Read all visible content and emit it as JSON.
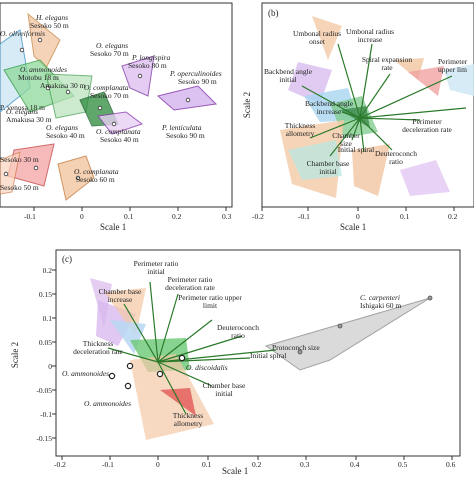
{
  "panel_a": {
    "xlabel": "Scale 1",
    "xticks": [
      "-0.1",
      "0",
      "0.1",
      "0.2",
      "0.3"
    ],
    "labels": [
      [
        "H. elegans",
        "Sesoko 50 m"
      ],
      [
        "O. oliveiformis"
      ],
      [
        "O. ammonoides",
        "Motobu 18 m"
      ],
      [
        "Amakusa 30 m"
      ],
      [
        "O. elegans",
        "Sesoko 70 m"
      ],
      [
        "P. longispira",
        "Sesoko 80 m"
      ],
      [
        "P. operculinoides",
        "Sesoko 90 m"
      ],
      [
        "O. complanata",
        "Sesoko 70 m"
      ],
      [
        "O. elegans",
        "Amakusa 30 m"
      ],
      [
        "O. elegans",
        "Sesoko 40 m"
      ],
      [
        "O. complanata",
        "Sesoko 40 m"
      ],
      [
        "P. venosa 18 m"
      ],
      [
        "O. complanata",
        "Sesoko 60 m"
      ],
      [
        "P. lenticulata",
        "Sesoko 90 m"
      ],
      [
        "Sesoko 30 m"
      ],
      [
        "Sesoko 50 m"
      ]
    ]
  },
  "panel_b": {
    "tag": "(b)",
    "xlabel": "Scale 1",
    "ylabel": "Scale 2",
    "xticks": [
      "-0.2",
      "-0.1",
      "0",
      "0.1",
      "0.2"
    ],
    "yticks": [
      "0.2",
      "0.1",
      "0",
      "-0.1",
      "-0.2"
    ],
    "vectors": [
      "Umbonal radius onset",
      "Umbonal radius increase",
      "Spiral expansion rate",
      "Perimeter upper lim",
      "Backbend angle initial",
      "Backbend angle increase",
      "Thickness allometry",
      "Chamber size",
      "Initial spiral",
      "Deuteroconch ratio",
      "Perimeter deceleration rate",
      "Chamber base initial"
    ]
  },
  "panel_c": {
    "tag": "(c)",
    "xlabel": "Scale 1",
    "ylabel": "Scale 2",
    "xticks": [
      "-0.2",
      "-0.1",
      "0",
      "0.1",
      "0.2",
      "0.3",
      "0.4",
      "0.5",
      "0.6"
    ],
    "yticks": [
      "0.2",
      "0.15",
      "0.1",
      "0.05",
      "0",
      "-0.05",
      "-0.1",
      "-0.15"
    ],
    "vectors": [
      "Perimeter ratio initial",
      "Perimeter ratio deceleration rate",
      "Perimeter ratio upper limit",
      "Chamber base increase",
      "Deuteroconch ratio",
      "Protoconch size",
      "Initial spiral",
      "Thickness deceleration rate",
      "Chamber base initial",
      "Thickness allometry"
    ],
    "species": [
      [
        "C. carpenteri",
        "Ishigaki 60 m"
      ],
      [
        "O. discoidalis"
      ],
      [
        "O. ammonoides"
      ],
      [
        "O. ammonoides"
      ]
    ]
  }
}
